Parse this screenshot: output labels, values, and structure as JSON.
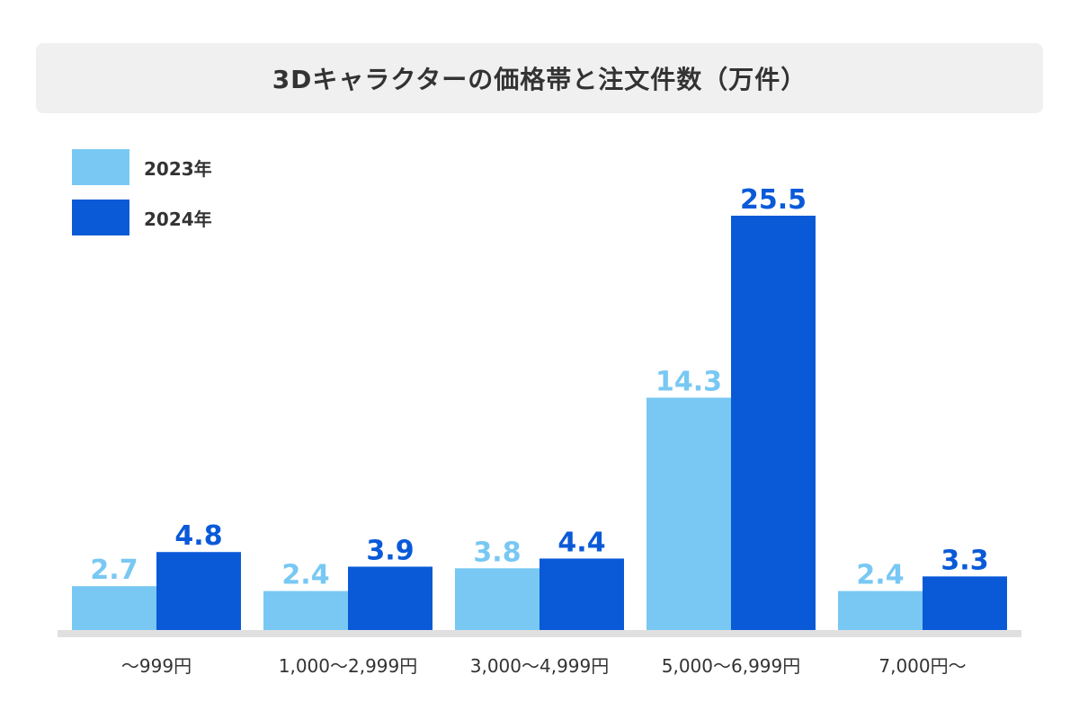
{
  "chart_data": {
    "type": "bar",
    "title": "3Dキャラクターの価格帯と注文件数（万件）",
    "categories": [
      "〜999円",
      "1,000〜2,999円",
      "3,000〜4,999円",
      "5,000〜6,999円",
      "7,000円〜"
    ],
    "series": [
      {
        "name": "2023年",
        "values": [
          2.7,
          2.4,
          3.8,
          14.3,
          2.4
        ],
        "color": "#78c8f3"
      },
      {
        "name": "2024年",
        "values": [
          4.8,
          3.9,
          4.4,
          25.5,
          3.3
        ],
        "color": "#0a5ad8"
      }
    ],
    "ylim": [
      0,
      25.5
    ],
    "grid": false,
    "legend_position": "top-left",
    "axis_color": "#e0e0e0",
    "label_color": "#333333"
  }
}
